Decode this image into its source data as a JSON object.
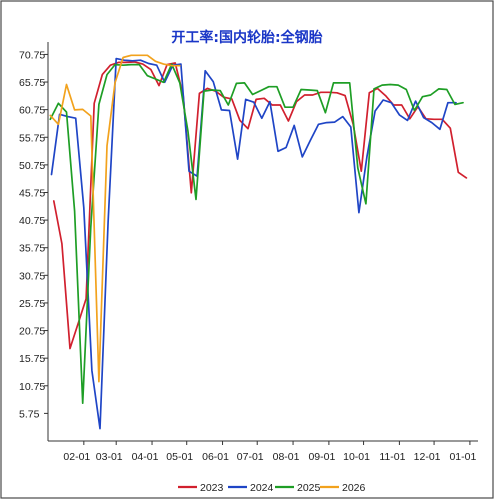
{
  "chart_data": {
    "type": "line",
    "title": "开工率:国内轮胎:全钢胎",
    "ylim": [
      0.75,
      73.0
    ],
    "y_ticks": [
      "70.75",
      "65.75",
      "60.75",
      "55.75",
      "50.75",
      "45.75",
      "40.75",
      "35.75",
      "30.75",
      "25.75",
      "20.75",
      "15.75",
      "10.75",
      "5.75"
    ],
    "x_ticks": [
      "02-01",
      "03-01",
      "04-01",
      "05-01",
      "06-01",
      "07-01",
      "08-01",
      "09-01",
      "10-01",
      "11-01",
      "12-01",
      "01-01"
    ],
    "x_tick_days": [
      31,
      59,
      90,
      120,
      151,
      181,
      212,
      243,
      273,
      304,
      334,
      365
    ],
    "grid": false,
    "legend_position": "bottom",
    "series": [
      {
        "name": "2023",
        "color": "#d1202e",
        "x": [
          5,
          12,
          19,
          26,
          33,
          40,
          47,
          54,
          61,
          68,
          75,
          82,
          89,
          96,
          103,
          110,
          117,
          124,
          131,
          138,
          145,
          152,
          159,
          166,
          173,
          180,
          187,
          194,
          201,
          208,
          215,
          222,
          229,
          236,
          243,
          250,
          257,
          264,
          271,
          278,
          285,
          292,
          299,
          306,
          313,
          320,
          327,
          334,
          341,
          348,
          355,
          362
        ],
        "values": [
          44.2,
          36.5,
          17.5,
          22.0,
          26.5,
          61.9,
          67.1,
          68.8,
          69.3,
          69.3,
          69.4,
          69.0,
          68.0,
          65.1,
          68.9,
          69.2,
          63.3,
          45.7,
          63.7,
          64.6,
          64.1,
          63.0,
          62.7,
          58.8,
          57.3,
          62.6,
          62.8,
          61.6,
          61.6,
          58.7,
          62.2,
          63.4,
          63.4,
          63.9,
          63.9,
          63.8,
          63.3,
          58.1,
          49.6,
          63.8,
          64.6,
          63.3,
          61.6,
          61.6,
          59.1,
          61.3,
          59.1,
          59.0,
          59.0,
          57.4,
          49.4,
          48.4
        ]
      },
      {
        "name": "2024",
        "color": "#1f45c6",
        "x": [
          3,
          10,
          17,
          24,
          31,
          38,
          45,
          52,
          59,
          66,
          73,
          80,
          87,
          94,
          101,
          108,
          115,
          122,
          129,
          136,
          143,
          150,
          157,
          164,
          171,
          178,
          185,
          192,
          199,
          206,
          213,
          220,
          227,
          234,
          241,
          248,
          255,
          262,
          269,
          276,
          283,
          290,
          297,
          304,
          311,
          318,
          325,
          332,
          339,
          346,
          353
        ],
        "values": [
          49.0,
          59.9,
          59.5,
          59.2,
          43.0,
          13.5,
          3.0,
          40.4,
          70.0,
          69.7,
          69.6,
          69.7,
          69.1,
          68.8,
          65.7,
          68.8,
          69.0,
          49.6,
          48.7,
          67.8,
          65.8,
          60.7,
          60.6,
          51.8,
          62.6,
          62.1,
          59.2,
          62.2,
          53.2,
          53.9,
          57.9,
          52.2,
          55.2,
          58.1,
          58.4,
          58.5,
          59.5,
          57.6,
          42.1,
          52.3,
          60.5,
          62.5,
          62.0,
          59.8,
          58.8,
          62.3,
          59.3,
          58.4,
          57.2,
          62.0,
          62.0
        ]
      },
      {
        "name": "2025",
        "color": "#1e9e25",
        "x": [
          2,
          9,
          16,
          23,
          30,
          37,
          44,
          51,
          58,
          65,
          72,
          79,
          86,
          93,
          100,
          107,
          114,
          121,
          128,
          135,
          142,
          149,
          156,
          163,
          170,
          177,
          184,
          191,
          198,
          205,
          212,
          219,
          226,
          233,
          240,
          247,
          254,
          261,
          268,
          275,
          282,
          289,
          296,
          303,
          310,
          317,
          324,
          331,
          338,
          345,
          352,
          359
        ],
        "values": [
          59.0,
          61.9,
          60.3,
          42.4,
          7.6,
          39.5,
          61.7,
          67.1,
          68.9,
          68.8,
          68.9,
          68.9,
          66.9,
          66.3,
          65.7,
          69.0,
          65.6,
          56.9,
          44.5,
          64.1,
          64.3,
          64.2,
          61.6,
          65.5,
          65.6,
          63.5,
          64.2,
          64.9,
          64.9,
          61.2,
          61.2,
          64.4,
          64.3,
          64.2,
          60.2,
          65.6,
          65.6,
          65.6,
          50.2,
          43.7,
          64.5,
          65.2,
          65.3,
          65.2,
          64.4,
          60.6,
          63.1,
          63.4,
          64.5,
          64.4,
          61.7,
          62.0
        ]
      },
      {
        "name": "2026",
        "color": "#f2a21d",
        "x": [
          2,
          9,
          16,
          23,
          30,
          37,
          44,
          51,
          58,
          65,
          72,
          79,
          86,
          93,
          100,
          107,
          114
        ],
        "values": [
          59.7,
          58.1,
          65.3,
          60.7,
          60.8,
          59.6,
          11.5,
          54.2,
          65.6,
          70.2,
          70.6,
          70.6,
          70.6,
          69.5,
          69.0,
          68.7,
          68.7
        ]
      }
    ]
  }
}
